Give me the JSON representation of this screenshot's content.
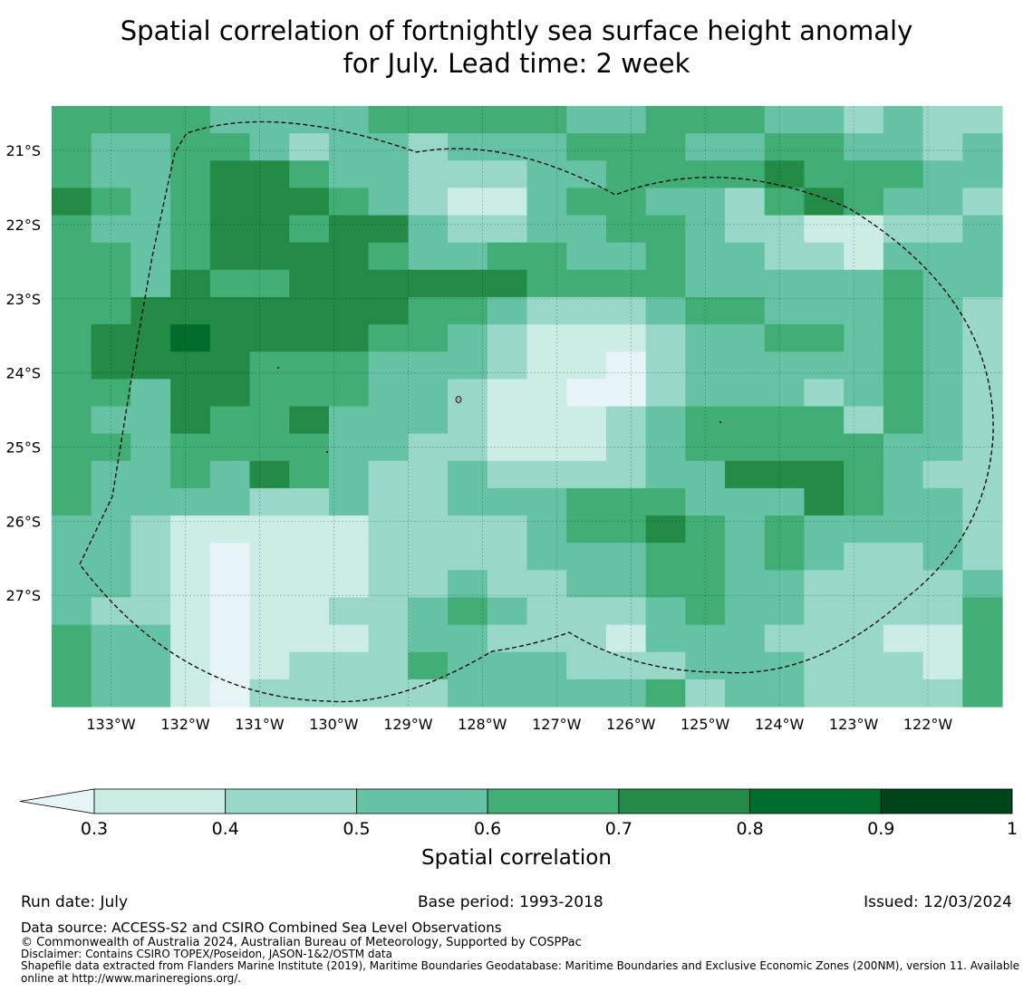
{
  "title": {
    "line1": "Spatial correlation of fortnightly sea surface height anomaly",
    "line2": "for July. Lead time: 2 week"
  },
  "map": {
    "lon_range": [
      -133.8,
      -121.0
    ],
    "lat_range": [
      -28.5,
      -20.4
    ],
    "lon_ticks": [
      "133°W",
      "132°W",
      "131°W",
      "130°W",
      "129°W",
      "128°W",
      "127°W",
      "126°W",
      "125°W",
      "124°W",
      "123°W",
      "122°W"
    ],
    "lat_ticks": [
      "21°S",
      "22°S",
      "23°S",
      "24°S",
      "25°S",
      "26°S",
      "27°S"
    ],
    "colors": {
      "very_light": "#e6f4f8",
      "c1": "#ccece6",
      "c2": "#99d8c9",
      "c3": "#66c2a4",
      "c4": "#41ae76",
      "c5": "#238b45",
      "c6": "#006d2c",
      "c7": "#00441b",
      "boundary": "#000000"
    }
  },
  "colorbar": {
    "ticks": [
      "0.3",
      "0.4",
      "0.5",
      "0.6",
      "0.7",
      "0.8",
      "0.9",
      "1"
    ],
    "colors": [
      "#ccece6",
      "#99d8c9",
      "#66c2a4",
      "#41ae76",
      "#238b45",
      "#006d2c",
      "#00441b"
    ],
    "extend_color": "#e6f4f8",
    "label": "Spatial correlation"
  },
  "footer": {
    "run_date": "Run date: July",
    "base_period": "Base period: 1993-2018",
    "issued": "Issued: 12/03/2024",
    "data_source": "Data source: ACCESS-S2 and CSIRO Combined Sea Level Observations",
    "copyright": "© Commonwealth of Australia 2024, Australian Bureau of Meteorology, Supported by COSPPac",
    "disclaimer": "Disclaimer: Contains CSIRO TOPEX/Poseidon, JASON-1&2/OSTM data",
    "shapefile_line1": "Shapefile data extracted from Flanders Marine Institute (2019), Maritime Boundaries Geodatabase: Maritime Boundaries and Exclusive Economic Zones (200NM), version 11. Available",
    "shapefile_line2": "online at http://www.marineregions.org/."
  }
}
